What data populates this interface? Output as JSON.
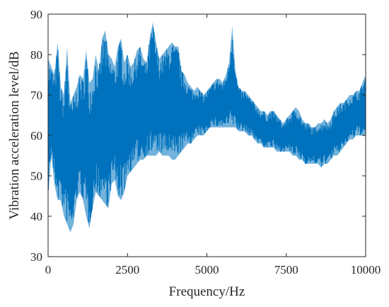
{
  "chart_data": {
    "type": "line",
    "title": "",
    "xlabel": "Frequency/Hz",
    "ylabel": "Vibration acceleration level/dB",
    "xlim": [
      0,
      10000
    ],
    "ylim": [
      30,
      90
    ],
    "xticks": [
      0,
      2500,
      5000,
      7500,
      10000
    ],
    "yticks": [
      30,
      40,
      50,
      60,
      70,
      80,
      90
    ],
    "grid": false,
    "legend": "none",
    "color": "#0072BD",
    "series": [
      {
        "x": [
          0,
          100,
          200,
          300,
          400,
          500,
          600,
          700,
          800,
          900,
          1000,
          1100,
          1200,
          1300,
          1400,
          1500,
          1600,
          1700,
          1800,
          1900,
          2000,
          2100,
          2200,
          2300,
          2400,
          2500,
          2600,
          2700,
          2800,
          2900,
          3000,
          3100,
          3200,
          3300,
          3400,
          3500,
          3600,
          3700,
          3800,
          3900,
          4000,
          4100,
          4200,
          4300,
          4400,
          4500,
          4600,
          4700,
          4800,
          4900,
          5000,
          5100,
          5200,
          5300,
          5400,
          5500,
          5600,
          5700,
          5800,
          5900,
          6000,
          6100,
          6200,
          6300,
          6400,
          6500,
          6600,
          6700,
          6800,
          6900,
          7000,
          7100,
          7200,
          7300,
          7400,
          7500,
          7600,
          7700,
          7800,
          7900,
          8000,
          8100,
          8200,
          8300,
          8400,
          8500,
          8600,
          8700,
          8800,
          8900,
          9000,
          9100,
          9200,
          9300,
          9400,
          9500,
          9600,
          9700,
          9800,
          9900,
          10000
        ],
        "upper": [
          79,
          77,
          75,
          83,
          72,
          70,
          82,
          68,
          70,
          72,
          75,
          74,
          81,
          73,
          74,
          80,
          76,
          84,
          86,
          80,
          79,
          77,
          82,
          84,
          78,
          80,
          77,
          78,
          81,
          82,
          79,
          78,
          84,
          88,
          83,
          79,
          80,
          81,
          82,
          83,
          82,
          82,
          76,
          75,
          73,
          72,
          71,
          72,
          71,
          70,
          71,
          72,
          73,
          74,
          74,
          73,
          75,
          78,
          87,
          76,
          72,
          71,
          71,
          70,
          69,
          68,
          67,
          66,
          66,
          65,
          66,
          66,
          65,
          64,
          63,
          64,
          65,
          66,
          67,
          66,
          64,
          63,
          63,
          62,
          62,
          63,
          63,
          64,
          63,
          64,
          66,
          67,
          68,
          68,
          69,
          70,
          70,
          71,
          71,
          73,
          75
        ],
        "lower": [
          45,
          55,
          48,
          44,
          44,
          40,
          38,
          36,
          38,
          44,
          46,
          44,
          40,
          37,
          42,
          46,
          45,
          44,
          43,
          42,
          48,
          49,
          45,
          44,
          46,
          50,
          51,
          52,
          53,
          54,
          54,
          55,
          55,
          55,
          55,
          56,
          55,
          55,
          55,
          54,
          54,
          55,
          56,
          57,
          58,
          58,
          59,
          60,
          60,
          60,
          61,
          62,
          62,
          62,
          62,
          62,
          62,
          62,
          62,
          62,
          61,
          61,
          61,
          60,
          60,
          59,
          58,
          58,
          57,
          57,
          57,
          57,
          56,
          56,
          56,
          56,
          56,
          55,
          55,
          54,
          54,
          53,
          53,
          53,
          53,
          53,
          52,
          53,
          53,
          54,
          55,
          55,
          56,
          57,
          58,
          59,
          59,
          60,
          60,
          60,
          60
        ]
      }
    ]
  }
}
